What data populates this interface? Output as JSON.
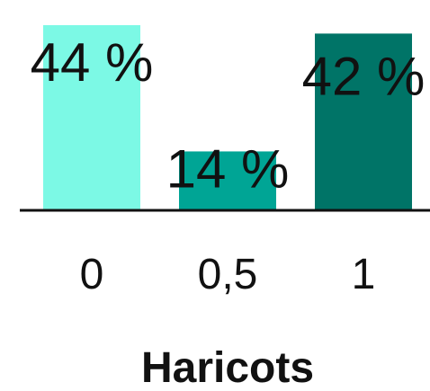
{
  "chart_data": {
    "type": "bar",
    "categories": [
      "0",
      "0,5",
      "1"
    ],
    "values": [
      44,
      14,
      42
    ],
    "value_labels": [
      "44 %",
      "14 %",
      "42 %"
    ],
    "colors": [
      "#7CF9E5",
      "#00A595",
      "#007467"
    ],
    "xlabel": "Haricots",
    "ylabel": "",
    "ylim": [
      0,
      44
    ],
    "grid": false,
    "legend": "none"
  }
}
